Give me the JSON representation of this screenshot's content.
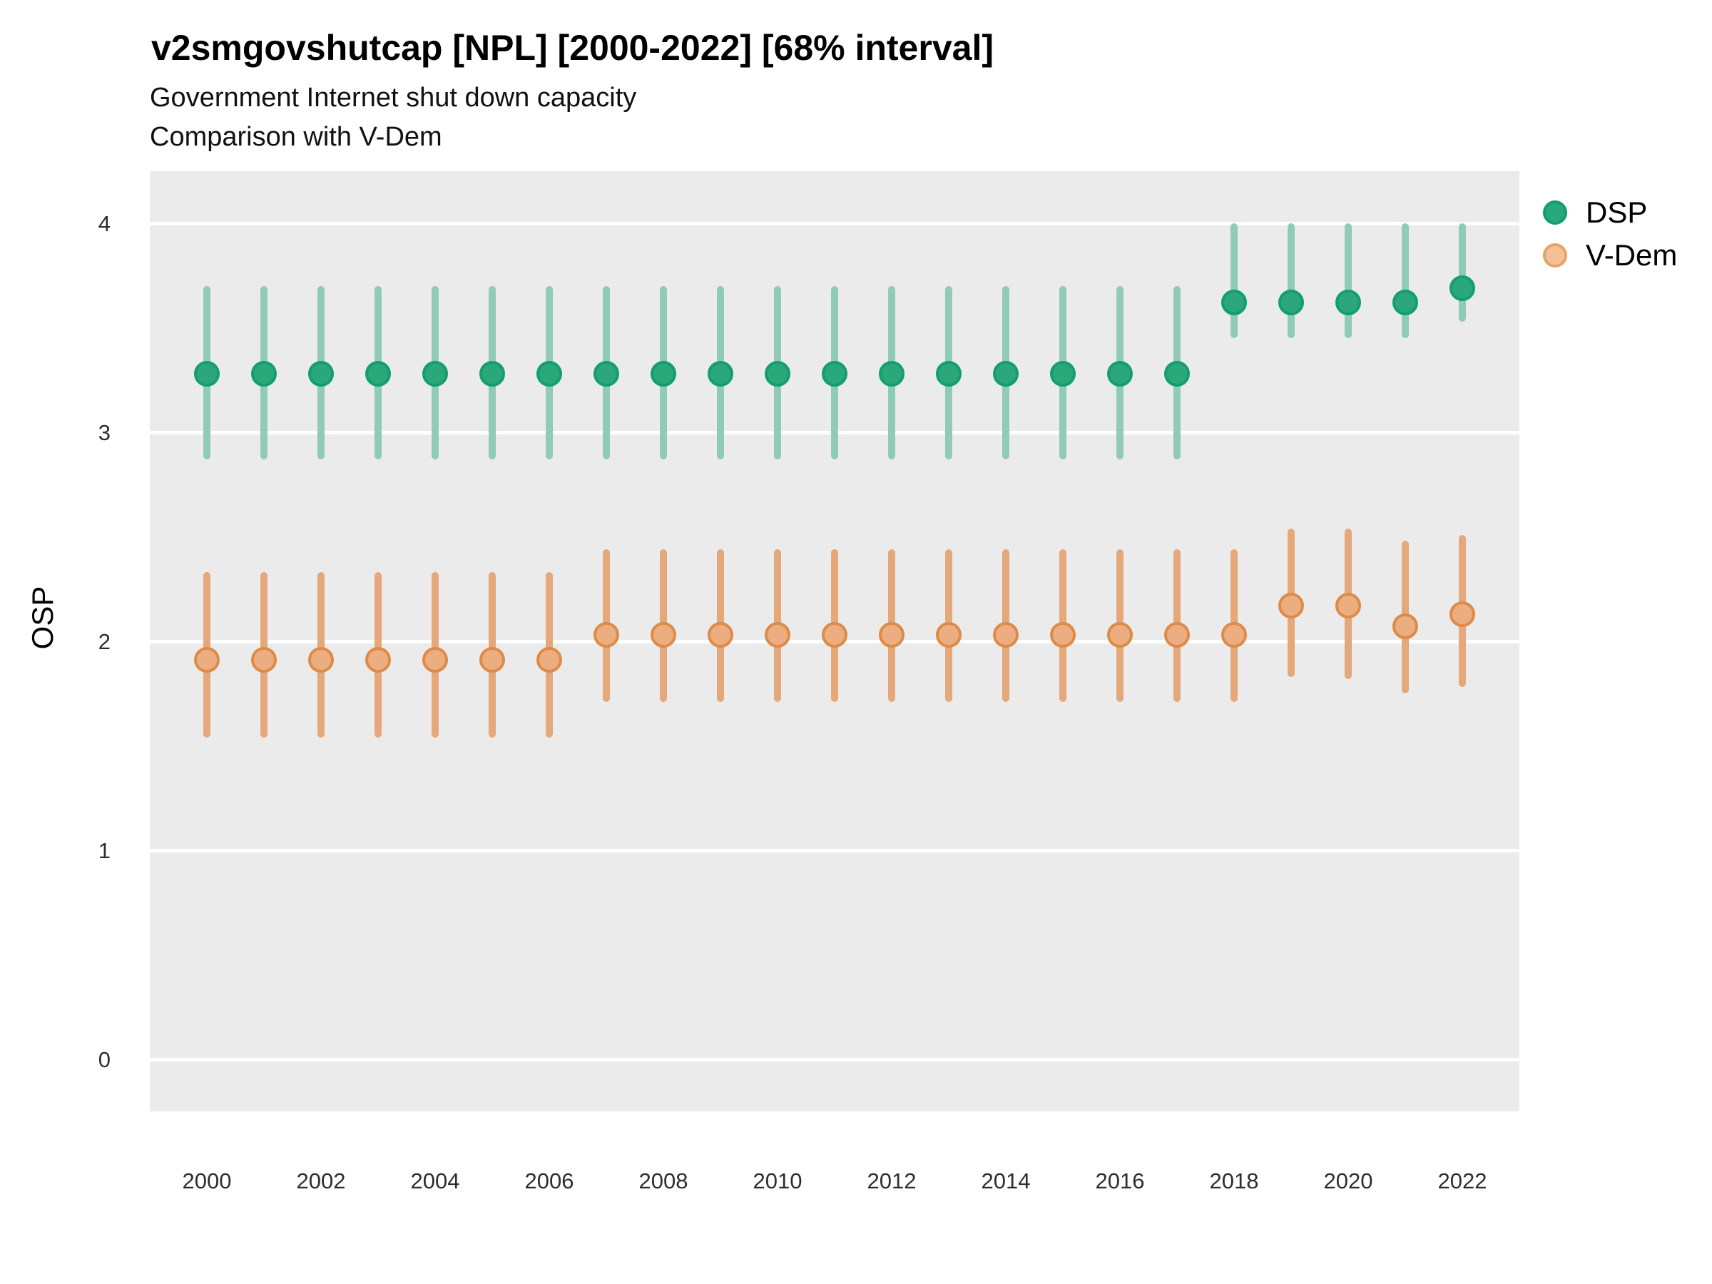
{
  "header": {
    "title": "v2smgovshutcap [NPL] [2000-2022] [68% interval]",
    "subtitle1": "Government Internet shut down capacity",
    "subtitle2": "Comparison with V-Dem"
  },
  "axes": {
    "y_title": "OSP",
    "y_ticks": [
      4,
      3,
      2,
      1,
      0
    ],
    "x_ticks": [
      2000,
      2002,
      2004,
      2006,
      2008,
      2010,
      2012,
      2014,
      2016,
      2018,
      2020,
      2022
    ]
  },
  "colors": {
    "panel_bg": "#EBEBEB",
    "gridline": "#FFFFFF",
    "dsp_bar": "#8FCBB5",
    "dsp_fill": "#2BA77C",
    "dsp_stroke": "#149E6E",
    "vdem_bar": "#E4A87A",
    "vdem_fill": "#ECAE80",
    "vdem_stroke": "#DD8B49",
    "legend_vdem_fill": "#F4C096",
    "legend_vdem_stroke": "#E6A468"
  },
  "legend": [
    {
      "label": "DSP",
      "series": "dsp"
    },
    {
      "label": "V-Dem",
      "series": "vdem"
    }
  ],
  "chart_data": {
    "type": "scatter",
    "subtype": "pointrange-interval-68pct",
    "title": "v2smgovshutcap [NPL] [2000-2022] [68% interval]",
    "xlabel": "",
    "ylabel": "OSP",
    "ylim": [
      -0.25,
      4.25
    ],
    "grid": "horizontal-only",
    "legend_position": "right-top",
    "series": [
      {
        "name": "DSP",
        "points": [
          {
            "year": 2000,
            "mid": 3.28,
            "lo": 2.87,
            "hi": 3.7
          },
          {
            "year": 2001,
            "mid": 3.28,
            "lo": 2.87,
            "hi": 3.7
          },
          {
            "year": 2002,
            "mid": 3.28,
            "lo": 2.87,
            "hi": 3.7
          },
          {
            "year": 2003,
            "mid": 3.28,
            "lo": 2.87,
            "hi": 3.7
          },
          {
            "year": 2004,
            "mid": 3.28,
            "lo": 2.87,
            "hi": 3.7
          },
          {
            "year": 2005,
            "mid": 3.28,
            "lo": 2.87,
            "hi": 3.7
          },
          {
            "year": 2006,
            "mid": 3.28,
            "lo": 2.87,
            "hi": 3.7
          },
          {
            "year": 2007,
            "mid": 3.28,
            "lo": 2.87,
            "hi": 3.7
          },
          {
            "year": 2008,
            "mid": 3.28,
            "lo": 2.87,
            "hi": 3.7
          },
          {
            "year": 2009,
            "mid": 3.28,
            "lo": 2.87,
            "hi": 3.7
          },
          {
            "year": 2010,
            "mid": 3.28,
            "lo": 2.87,
            "hi": 3.7
          },
          {
            "year": 2011,
            "mid": 3.28,
            "lo": 2.87,
            "hi": 3.7
          },
          {
            "year": 2012,
            "mid": 3.28,
            "lo": 2.87,
            "hi": 3.7
          },
          {
            "year": 2013,
            "mid": 3.28,
            "lo": 2.87,
            "hi": 3.7
          },
          {
            "year": 2014,
            "mid": 3.28,
            "lo": 2.87,
            "hi": 3.7
          },
          {
            "year": 2015,
            "mid": 3.28,
            "lo": 2.87,
            "hi": 3.7
          },
          {
            "year": 2016,
            "mid": 3.28,
            "lo": 2.87,
            "hi": 3.7
          },
          {
            "year": 2017,
            "mid": 3.28,
            "lo": 2.87,
            "hi": 3.7
          },
          {
            "year": 2018,
            "mid": 3.62,
            "lo": 3.45,
            "hi": 4.0
          },
          {
            "year": 2019,
            "mid": 3.62,
            "lo": 3.45,
            "hi": 4.0
          },
          {
            "year": 2020,
            "mid": 3.62,
            "lo": 3.45,
            "hi": 4.0
          },
          {
            "year": 2021,
            "mid": 3.62,
            "lo": 3.45,
            "hi": 4.0
          },
          {
            "year": 2022,
            "mid": 3.69,
            "lo": 3.53,
            "hi": 4.0
          }
        ]
      },
      {
        "name": "V-Dem",
        "points": [
          {
            "year": 2000,
            "mid": 1.91,
            "lo": 1.54,
            "hi": 2.33
          },
          {
            "year": 2001,
            "mid": 1.91,
            "lo": 1.54,
            "hi": 2.33
          },
          {
            "year": 2002,
            "mid": 1.91,
            "lo": 1.54,
            "hi": 2.33
          },
          {
            "year": 2003,
            "mid": 1.91,
            "lo": 1.54,
            "hi": 2.33
          },
          {
            "year": 2004,
            "mid": 1.91,
            "lo": 1.54,
            "hi": 2.33
          },
          {
            "year": 2005,
            "mid": 1.91,
            "lo": 1.54,
            "hi": 2.33
          },
          {
            "year": 2006,
            "mid": 1.91,
            "lo": 1.54,
            "hi": 2.33
          },
          {
            "year": 2007,
            "mid": 2.03,
            "lo": 1.71,
            "hi": 2.44
          },
          {
            "year": 2008,
            "mid": 2.03,
            "lo": 1.71,
            "hi": 2.44
          },
          {
            "year": 2009,
            "mid": 2.03,
            "lo": 1.71,
            "hi": 2.44
          },
          {
            "year": 2010,
            "mid": 2.03,
            "lo": 1.71,
            "hi": 2.44
          },
          {
            "year": 2011,
            "mid": 2.03,
            "lo": 1.71,
            "hi": 2.44
          },
          {
            "year": 2012,
            "mid": 2.03,
            "lo": 1.71,
            "hi": 2.44
          },
          {
            "year": 2013,
            "mid": 2.03,
            "lo": 1.71,
            "hi": 2.44
          },
          {
            "year": 2014,
            "mid": 2.03,
            "lo": 1.71,
            "hi": 2.44
          },
          {
            "year": 2015,
            "mid": 2.03,
            "lo": 1.71,
            "hi": 2.44
          },
          {
            "year": 2016,
            "mid": 2.03,
            "lo": 1.71,
            "hi": 2.44
          },
          {
            "year": 2017,
            "mid": 2.03,
            "lo": 1.71,
            "hi": 2.44
          },
          {
            "year": 2018,
            "mid": 2.03,
            "lo": 1.71,
            "hi": 2.44
          },
          {
            "year": 2019,
            "mid": 2.17,
            "lo": 1.83,
            "hi": 2.54
          },
          {
            "year": 2020,
            "mid": 2.17,
            "lo": 1.82,
            "hi": 2.54
          },
          {
            "year": 2021,
            "mid": 2.07,
            "lo": 1.75,
            "hi": 2.48
          },
          {
            "year": 2022,
            "mid": 2.13,
            "lo": 1.78,
            "hi": 2.51
          }
        ]
      }
    ]
  }
}
